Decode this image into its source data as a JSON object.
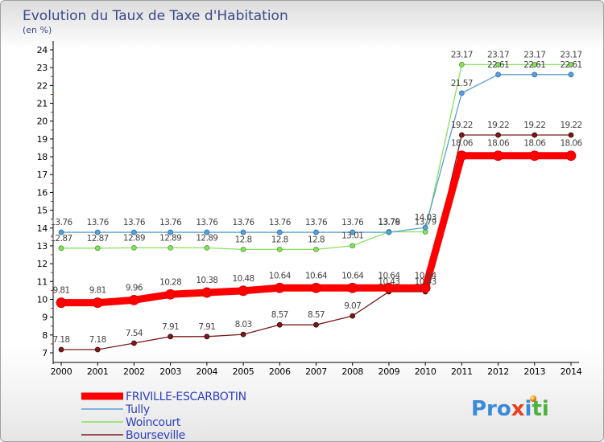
{
  "chart_data": {
    "type": "line",
    "title": "Evolution du Taux de Taxe d'Habitation",
    "subtitle": "(en %)",
    "x": [
      "2000",
      "2001",
      "2002",
      "2003",
      "2004",
      "2005",
      "2006",
      "2007",
      "2008",
      "2009",
      "2010",
      "2011",
      "2012",
      "2013",
      "2014"
    ],
    "ylim": [
      7,
      24
    ],
    "yticks": [
      7,
      8,
      9,
      10,
      11,
      12,
      13,
      14,
      15,
      16,
      17,
      18,
      19,
      20,
      21,
      22,
      23,
      24
    ],
    "grid": false,
    "legend_position": "bottom-left",
    "series": [
      {
        "name": "FRIVILLE-ESCARBOTIN",
        "color": "#ff0000",
        "values": [
          9.81,
          9.81,
          9.96,
          10.28,
          10.38,
          10.48,
          10.64,
          10.64,
          10.64,
          10.64,
          10.64,
          18.06,
          18.06,
          18.06,
          18.06
        ],
        "labels": [
          "9.81",
          "9.81",
          "9.96",
          "10.28",
          "10.38",
          "10.48",
          "10.64",
          "10.64",
          "10.64",
          "10.64",
          "10.64",
          "18.06",
          "18.06",
          "18.06",
          "18.06"
        ]
      },
      {
        "name": "Tully",
        "color": "#5a9fd4",
        "values": [
          13.76,
          13.76,
          13.76,
          13.76,
          13.76,
          13.76,
          13.76,
          13.76,
          13.76,
          13.76,
          14.03,
          21.57,
          22.61,
          22.61,
          22.61
        ],
        "labels": [
          "13.76",
          "13.76",
          "13.76",
          "13.76",
          "13.76",
          "13.76",
          "13.76",
          "13.76",
          "13.76",
          "13.76",
          "14.03",
          "21.57",
          "22.61",
          "22.61",
          "22.61"
        ]
      },
      {
        "name": "Woincourt",
        "color": "#88e060",
        "values": [
          12.87,
          12.87,
          12.89,
          12.89,
          12.89,
          12.8,
          12.8,
          12.8,
          13.01,
          13.79,
          13.79,
          23.17,
          23.17,
          23.17,
          23.17
        ],
        "labels": [
          "12.87",
          "12.87",
          "12.89",
          "12.89",
          "12.89",
          "12.8",
          "12.8",
          "12.8",
          "13.01",
          "13.79",
          "13.79",
          "23.17",
          "23.17",
          "23.17",
          "23.17"
        ]
      },
      {
        "name": "Bourseville",
        "color": "#7a1a1a",
        "values": [
          7.18,
          7.18,
          7.54,
          7.91,
          7.91,
          8.03,
          8.57,
          8.57,
          9.07,
          10.43,
          10.43,
          19.22,
          19.22,
          19.22,
          19.22
        ],
        "labels": [
          "7.18",
          "7.18",
          "7.54",
          "7.91",
          "7.91",
          "8.03",
          "8.57",
          "8.57",
          "9.07",
          "10.43",
          "10.43",
          "19.22",
          "19.22",
          "19.22",
          "19.22"
        ]
      }
    ]
  },
  "logo": {
    "text": "Proxiti",
    "colors": [
      "#3a8ad8",
      "#f0a020",
      "#e84020",
      "#50b040"
    ]
  }
}
